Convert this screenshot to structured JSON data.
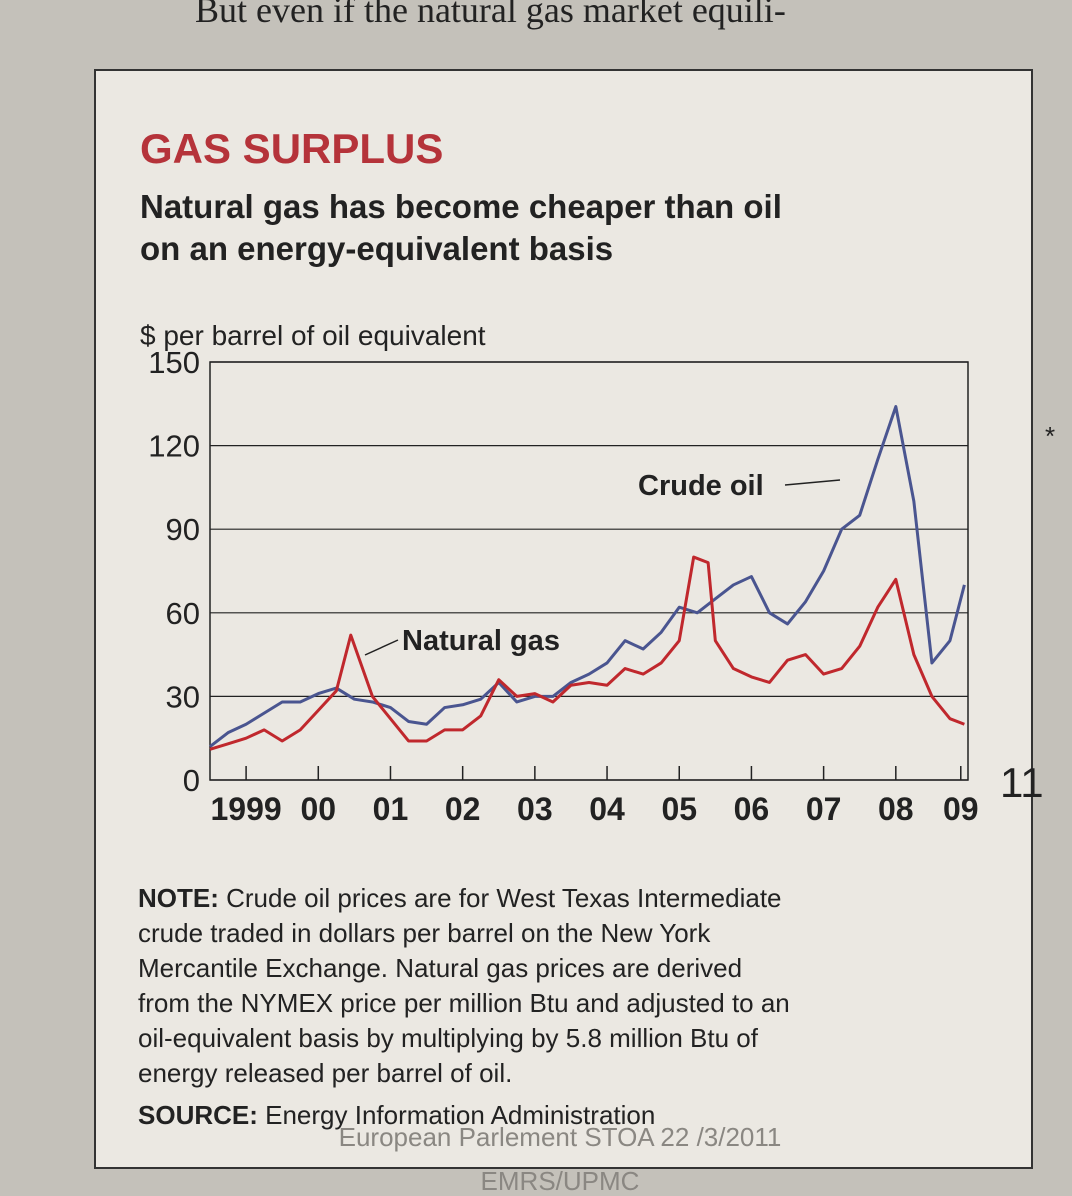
{
  "header_text": "But even if the natural gas market equili-",
  "chart_data": {
    "type": "line",
    "title": "GAS SURPLUS",
    "subtitle": [
      "Natural gas has become cheaper than oil",
      "on an energy-equivalent basis"
    ],
    "y_label": "$ per barrel of oil equivalent",
    "xlim": [
      1999,
      2009.5
    ],
    "xticks": [
      {
        "value": 1999.5,
        "label": "1999"
      },
      {
        "value": 2000.5,
        "label": "00"
      },
      {
        "value": 2001.5,
        "label": "01"
      },
      {
        "value": 2002.5,
        "label": "02"
      },
      {
        "value": 2003.5,
        "label": "03"
      },
      {
        "value": 2004.5,
        "label": "04"
      },
      {
        "value": 2005.5,
        "label": "05"
      },
      {
        "value": 2006.5,
        "label": "06"
      },
      {
        "value": 2007.5,
        "label": "07"
      },
      {
        "value": 2008.5,
        "label": "08"
      },
      {
        "value": 2009.4,
        "label": "09"
      }
    ],
    "ylim": [
      0,
      150
    ],
    "yticks": [
      0,
      30,
      60,
      90,
      120,
      150
    ],
    "grid": true,
    "series": [
      {
        "name": "Crude oil",
        "color": "#4a5590",
        "x": [
          1999.0,
          1999.25,
          1999.5,
          1999.75,
          2000.0,
          2000.25,
          2000.5,
          2000.75,
          2001.0,
          2001.25,
          2001.5,
          2001.75,
          2002.0,
          2002.25,
          2002.5,
          2002.75,
          2003.0,
          2003.25,
          2003.5,
          2003.75,
          2004.0,
          2004.25,
          2004.5,
          2004.75,
          2005.0,
          2005.25,
          2005.5,
          2005.75,
          2006.0,
          2006.25,
          2006.5,
          2006.75,
          2007.0,
          2007.25,
          2007.5,
          2007.75,
          2008.0,
          2008.25,
          2008.5,
          2008.75,
          2009.0,
          2009.25,
          2009.45
        ],
        "values": [
          12,
          17,
          20,
          24,
          28,
          28,
          31,
          33,
          29,
          28,
          26,
          21,
          20,
          26,
          27,
          29,
          35,
          28,
          30,
          30,
          35,
          38,
          42,
          50,
          47,
          53,
          62,
          60,
          65,
          70,
          73,
          60,
          56,
          64,
          75,
          90,
          95,
          115,
          134,
          100,
          42,
          50,
          70
        ]
      },
      {
        "name": "Natural gas",
        "color": "#c0282d",
        "x": [
          1999.0,
          1999.25,
          1999.5,
          1999.75,
          2000.0,
          2000.25,
          2000.5,
          2000.75,
          2000.95,
          2001.25,
          2001.5,
          2001.75,
          2002.0,
          2002.25,
          2002.5,
          2002.75,
          2003.0,
          2003.25,
          2003.5,
          2003.75,
          2004.0,
          2004.25,
          2004.5,
          2004.75,
          2005.0,
          2005.25,
          2005.5,
          2005.7,
          2005.9,
          2006.0,
          2006.25,
          2006.5,
          2006.75,
          2007.0,
          2007.25,
          2007.5,
          2007.75,
          2008.0,
          2008.25,
          2008.5,
          2008.75,
          2009.0,
          2009.25,
          2009.45
        ],
        "values": [
          11,
          13,
          15,
          18,
          14,
          18,
          25,
          32,
          52,
          30,
          22,
          14,
          14,
          18,
          18,
          23,
          36,
          30,
          31,
          28,
          34,
          35,
          34,
          40,
          38,
          42,
          50,
          80,
          78,
          50,
          40,
          37,
          35,
          43,
          45,
          38,
          40,
          48,
          62,
          72,
          45,
          30,
          22,
          20
        ]
      }
    ],
    "note_label": "NOTE:",
    "note": [
      " Crude oil prices are for West Texas Intermediate",
      "crude traded in dollars per barrel on the New York",
      "Mercantile Exchange. Natural gas prices are derived",
      "from the NYMEX price per million Btu and adjusted to an",
      "oil-equivalent basis by multiplying by 5.8 million Btu of",
      "energy released per barrel of oil."
    ],
    "source_label": "SOURCE:",
    "source": " Energy Information Administration"
  },
  "footer": [
    "European Parlement STOA 22 /3/2011",
    "EMRS/UPMC"
  ],
  "page_number": "11",
  "bullet": "*"
}
